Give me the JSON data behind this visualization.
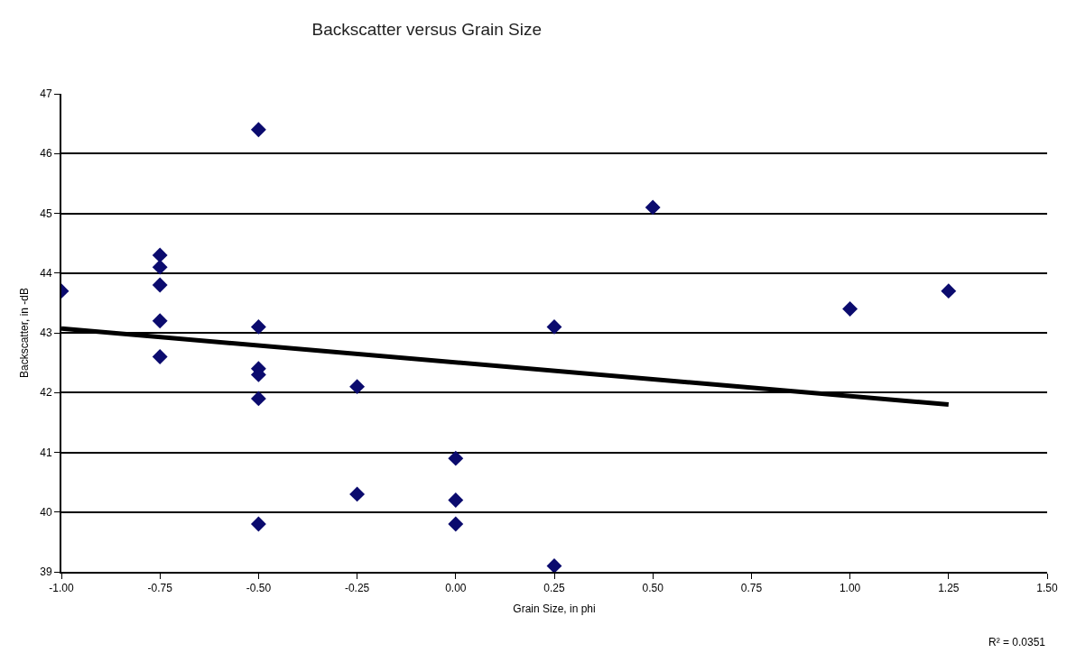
{
  "chart_data": {
    "type": "scatter",
    "title": "Backscatter versus Grain Size",
    "xlabel": "Grain Size, in phi",
    "ylabel": "Backscatter, in -dB",
    "annotations": [
      "R² = 0.0351"
    ],
    "series": [
      {
        "type": "scatter",
        "color": "#0b0b6e",
        "marker": "diamond",
        "x": [
          -1.0,
          -0.75,
          -0.75,
          -0.75,
          -0.75,
          -0.75,
          -0.5,
          -0.5,
          -0.5,
          -0.5,
          -0.5,
          -0.5,
          -0.25,
          -0.25,
          0.0,
          0.0,
          0.0,
          0.25,
          0.25,
          0.5,
          1.0,
          1.25
        ],
        "values": [
          43.7,
          44.3,
          44.1,
          43.8,
          43.2,
          42.6,
          46.4,
          43.1,
          42.4,
          42.3,
          41.9,
          39.8,
          42.1,
          40.3,
          40.9,
          40.2,
          39.8,
          43.1,
          39.1,
          45.1,
          43.4,
          43.7
        ]
      },
      {
        "type": "line",
        "color": "#000000",
        "x": [
          -1.0,
          1.25
        ],
        "values": [
          43.07,
          41.8
        ]
      }
    ],
    "xlim": [
      -1.0,
      1.5
    ],
    "ylim": [
      39,
      47
    ],
    "xticks": [
      {
        "value": -1.0,
        "label": "-1.00"
      },
      {
        "value": -0.75,
        "label": "-0.75"
      },
      {
        "value": -0.5,
        "label": "-0.50"
      },
      {
        "value": -0.25,
        "label": "-0.25"
      },
      {
        "value": 0,
        "label": "0.00"
      },
      {
        "value": 0.25,
        "label": "0.25"
      },
      {
        "value": 0.5,
        "label": "0.50"
      },
      {
        "value": 0.75,
        "label": "0.75"
      },
      {
        "value": 1.0,
        "label": "1.00"
      },
      {
        "value": 1.25,
        "label": "1.25"
      },
      {
        "value": 1.5,
        "label": "1.50"
      }
    ],
    "yticks": [
      39,
      40,
      41,
      42,
      43,
      44,
      45,
      46,
      47
    ],
    "grid": "y"
  }
}
